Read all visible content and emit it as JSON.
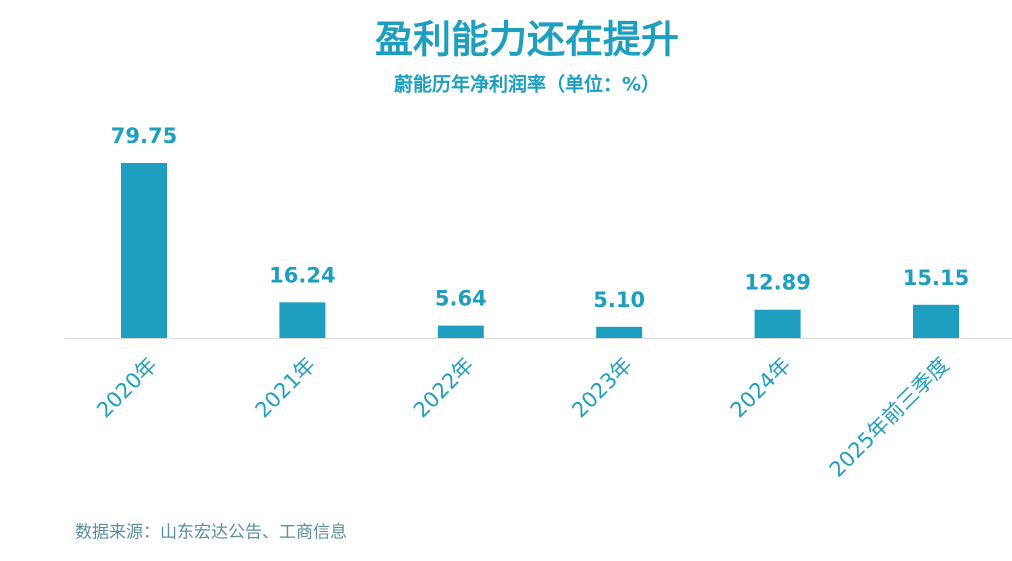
{
  "chart_data": {
    "type": "bar",
    "title": "盈利能力还在提升",
    "subtitle": "蔚能历年净利润率（单位：%）",
    "categories": [
      "2020年",
      "2021年",
      "2022年",
      "2023年",
      "2024年",
      "2025年前三季度"
    ],
    "values": [
      79.75,
      16.24,
      5.64,
      5.1,
      12.89,
      15.15
    ],
    "value_labels": [
      "79.75",
      "16.24",
      "5.64",
      "5.10",
      "12.89",
      "15.15"
    ],
    "color": "#1f9fbf",
    "source": "数据来源：山东宏达公告、工商信息"
  }
}
